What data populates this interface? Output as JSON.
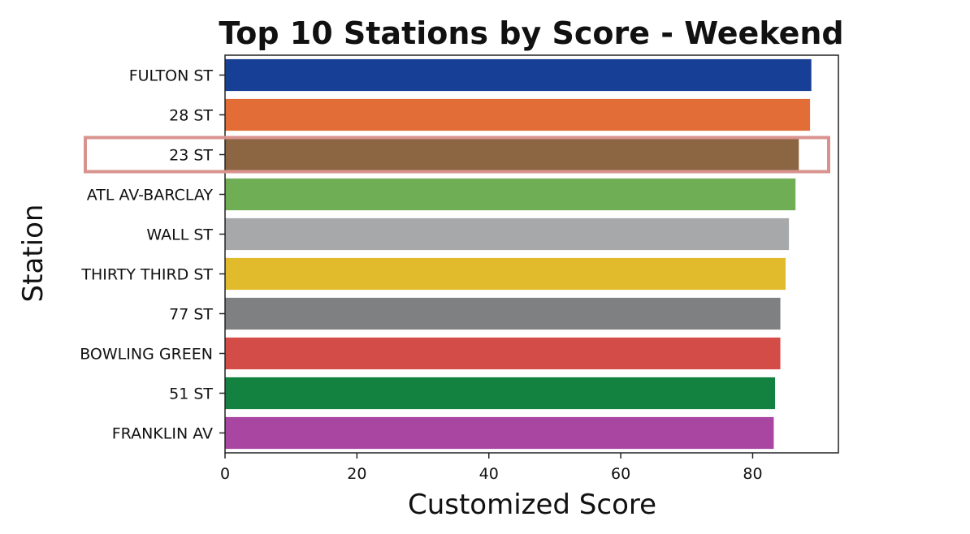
{
  "chart_data": {
    "type": "bar",
    "orientation": "horizontal",
    "title": "Top 10 Stations by Score  - Weekend",
    "xlabel": "Customized Score",
    "ylabel": "Station",
    "categories": [
      "FULTON ST",
      "28 ST",
      "23 ST",
      "ATL AV-BARCLAY",
      "WALL ST",
      "THIRTY THIRD ST",
      "77 ST",
      "BOWLING GREEN",
      "51 ST",
      "FRANKLIN AV"
    ],
    "values": [
      88.9,
      88.7,
      87.0,
      86.5,
      85.5,
      85.0,
      84.2,
      84.2,
      83.4,
      83.2
    ],
    "colors": [
      "#173f96",
      "#e26d36",
      "#8c6642",
      "#6fae55",
      "#a6a8aa",
      "#e1bb2b",
      "#7f8082",
      "#d44c48",
      "#138240",
      "#a846a1"
    ],
    "xlim": [
      0,
      93
    ],
    "xticks": [
      0,
      20,
      40,
      60,
      80
    ],
    "grid": false,
    "highlight": {
      "category": "23 ST",
      "color": "#d9938f"
    }
  }
}
